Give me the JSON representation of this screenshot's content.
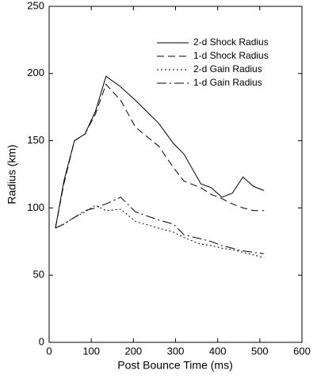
{
  "chart_data": {
    "type": "line",
    "x_label": "Post Bounce Time (ms)",
    "y_label": "Radius (km)",
    "x": [
      15,
      35,
      60,
      85,
      110,
      135,
      170,
      205,
      260,
      295,
      320,
      360,
      385,
      410,
      435,
      460,
      485,
      510
    ],
    "series": [
      {
        "name": "2-d Shock Radius",
        "color": "#000000",
        "linestyle": "solid",
        "values": [
          85,
          120,
          150,
          155,
          172,
          198,
          190,
          180,
          163,
          148,
          140,
          118,
          115,
          108,
          111,
          123,
          116,
          113
        ]
      },
      {
        "name": "1-d Shock Radius",
        "color": "#000000",
        "linestyle": "dashed",
        "values": [
          85,
          118,
          150,
          155,
          170,
          192,
          180,
          160,
          146,
          130,
          120,
          115,
          110,
          107,
          103,
          100,
          98,
          98
        ]
      },
      {
        "name": "2-d Gain Radius",
        "color": "#000000",
        "linestyle": "dotted",
        "values": [
          85,
          88,
          93,
          97,
          102,
          98,
          99,
          90,
          85,
          82,
          78,
          73,
          72,
          70,
          69,
          67,
          65,
          63
        ]
      },
      {
        "name": "1-d Gain Radius",
        "color": "#000000",
        "linestyle": "dashdot",
        "values": [
          85,
          88,
          93,
          98,
          100,
          103,
          108,
          97,
          91,
          88,
          80,
          77,
          75,
          72,
          70,
          68,
          67,
          66
        ]
      }
    ],
    "xlim": [
      0,
      600
    ],
    "xticks": [
      0,
      100,
      200,
      300,
      400,
      500,
      600
    ],
    "ylim": [
      0,
      250
    ],
    "yticks": [
      0,
      50,
      100,
      150,
      200,
      250
    ],
    "legend": "upper right"
  }
}
